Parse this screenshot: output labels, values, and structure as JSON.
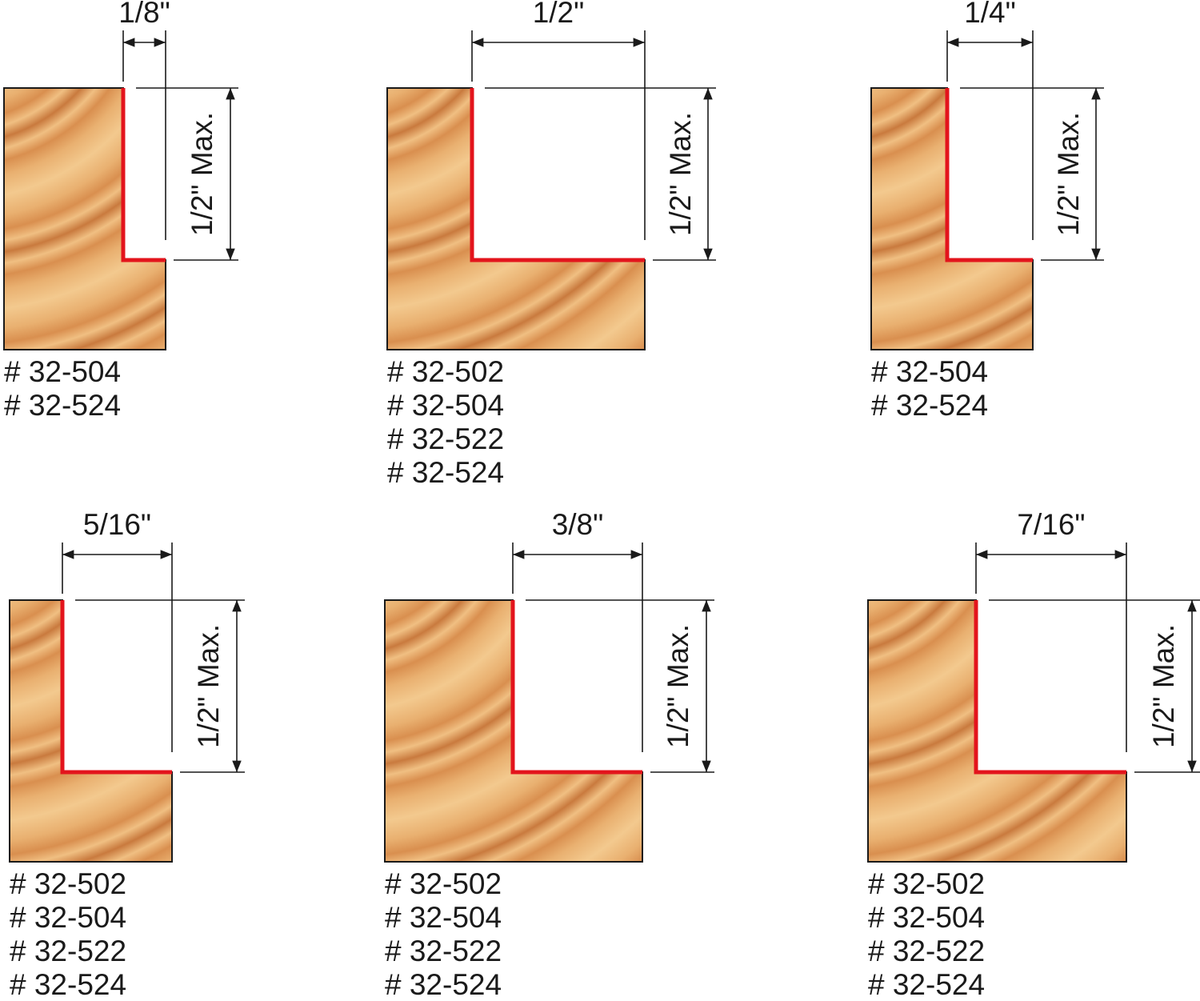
{
  "panels": [
    {
      "width": "1/8\"",
      "height": "1/2\" Max.",
      "parts": [
        {
          "text": "# 32-504",
          "color": "#1a1a1a"
        },
        {
          "text": "# 32-524",
          "color": "#d2232a"
        }
      ]
    },
    {
      "width": "1/2\"",
      "height": "1/2\" Max.",
      "parts": [
        {
          "text": "# 32-502",
          "color": "#1a1a1a"
        },
        {
          "text": "# 32-504",
          "color": "#1a1a1a"
        },
        {
          "text": "# 32-522",
          "color": "#d2232a"
        },
        {
          "text": "# 32-524",
          "color": "#d2232a"
        }
      ]
    },
    {
      "width": "1/4\"",
      "height": "1/2\" Max.",
      "parts": [
        {
          "text": "# 32-504",
          "color": "#1a1a1a"
        },
        {
          "text": "# 32-524",
          "color": "#d2232a"
        }
      ]
    },
    {
      "width": "5/16\"",
      "height": "1/2\" Max.",
      "parts": [
        {
          "text": "# 32-502",
          "color": "#1a1a1a"
        },
        {
          "text": "# 32-504",
          "color": "#1a1a1a"
        },
        {
          "text": "# 32-522",
          "color": "#d2232a"
        },
        {
          "text": "# 32-524",
          "color": "#d2232a"
        }
      ]
    },
    {
      "width": "3/8\"",
      "height": "1/2\" Max.",
      "parts": [
        {
          "text": "# 32-502",
          "color": "#1a1a1a"
        },
        {
          "text": "# 32-504",
          "color": "#1a1a1a"
        },
        {
          "text": "# 32-522",
          "color": "#d2232a"
        },
        {
          "text": "# 32-524",
          "color": "#d2232a"
        }
      ]
    },
    {
      "width": "7/16\"",
      "height": "1/2\" Max.",
      "parts": [
        {
          "text": "# 32-502",
          "color": "#1a1a1a"
        },
        {
          "text": "# 32-504",
          "color": "#1a1a1a"
        },
        {
          "text": "# 32-522",
          "color": "#d2232a"
        },
        {
          "text": "# 32-524",
          "color": "#d2232a"
        }
      ]
    }
  ]
}
